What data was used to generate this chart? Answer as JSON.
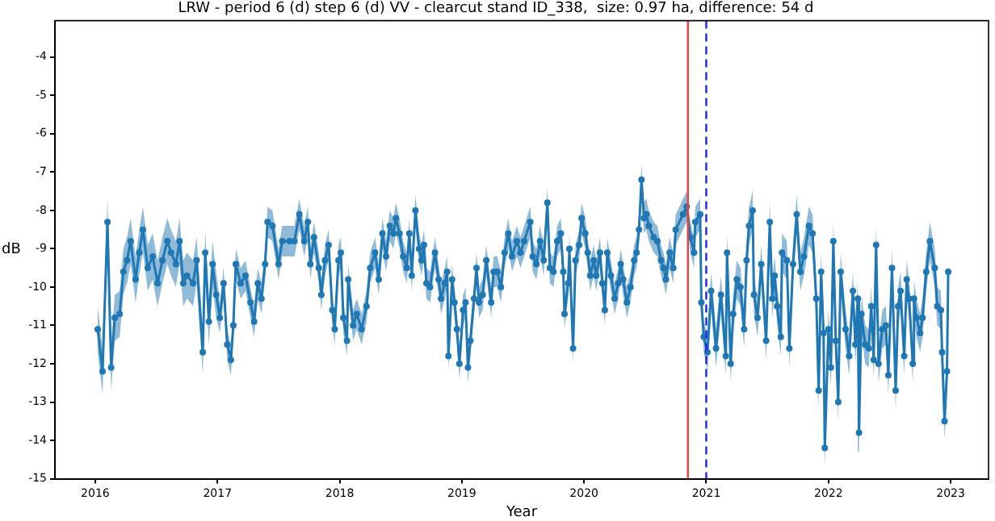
{
  "chart_data": {
    "type": "line",
    "title": "LRW - period 6 (d) step 6 (d) VV - clearcut stand ID_338,  size: 0.97 ha, difference: 54 d",
    "xlabel": "Year",
    "ylabel": "dB",
    "xlim": [
      2015.67,
      2023.31
    ],
    "xticks": [
      2016,
      2017,
      2018,
      2019,
      2020,
      2021,
      2022,
      2023
    ],
    "ylim": [
      -15,
      -3.05
    ],
    "yticks": [
      -15,
      -14,
      -13,
      -12,
      -11,
      -10,
      -9,
      -8,
      -7,
      -6,
      -5,
      -4
    ],
    "marker": "circle",
    "ref_lines": [
      {
        "axis": "x",
        "value": 2020.85,
        "color": "#f03c3c"
      },
      {
        "axis": "x",
        "value": 2021.0,
        "color": "#2222ee",
        "line_style": "dashed"
      }
    ],
    "series": [
      {
        "color": "#1f77b4",
        "x": [
          2016.02,
          2016.06,
          2016.1,
          2016.13,
          2016.16,
          2016.2,
          2016.23,
          2016.26,
          2016.29,
          2016.33,
          2016.36,
          2016.39,
          2016.43,
          2016.47,
          2016.51,
          2016.55,
          2016.59,
          2016.62,
          2016.66,
          2016.69,
          2016.72,
          2016.75,
          2016.8,
          2016.83,
          2016.88,
          2016.9,
          2016.93,
          2016.96,
          2016.99,
          2017.02,
          2017.05,
          2017.08,
          2017.11,
          2017.13,
          2017.15,
          2017.19,
          2017.23,
          2017.27,
          2017.3,
          2017.33,
          2017.36,
          2017.39,
          2017.41,
          2017.45,
          2017.5,
          2017.53,
          2017.59,
          2017.63,
          2017.67,
          2017.71,
          2017.74,
          2017.76,
          2017.79,
          2017.83,
          2017.85,
          2017.88,
          2017.91,
          2017.94,
          2017.96,
          2017.99,
          2018.01,
          2018.03,
          2018.06,
          2018.07,
          2018.11,
          2018.14,
          2018.18,
          2018.22,
          2018.25,
          2018.29,
          2018.32,
          2018.35,
          2018.38,
          2018.41,
          2018.44,
          2018.46,
          2018.49,
          2018.52,
          2018.55,
          2018.57,
          2018.59,
          2018.62,
          2018.65,
          2018.67,
          2018.69,
          2018.71,
          2018.74,
          2018.78,
          2018.81,
          2018.83,
          2018.86,
          2018.88,
          2018.89,
          2018.92,
          2018.94,
          2018.96,
          2018.98,
          2019.01,
          2019.03,
          2019.05,
          2019.07,
          2019.1,
          2019.12,
          2019.14,
          2019.17,
          2019.2,
          2019.24,
          2019.26,
          2019.29,
          2019.32,
          2019.35,
          2019.38,
          2019.41,
          2019.45,
          2019.48,
          2019.51,
          2019.56,
          2019.58,
          2019.61,
          2019.64,
          2019.67,
          2019.7,
          2019.72,
          2019.75,
          2019.78,
          2019.81,
          2019.83,
          2019.84,
          2019.87,
          2019.88,
          2019.91,
          2019.93,
          2019.96,
          2019.98,
          2020.01,
          2020.03,
          2020.05,
          2020.08,
          2020.1,
          2020.13,
          2020.15,
          2020.17,
          2020.19,
          2020.22,
          2020.25,
          2020.28,
          2020.3,
          2020.32,
          2020.35,
          2020.38,
          2020.41,
          2020.43,
          2020.45,
          2020.47,
          2020.49,
          2020.51,
          2020.53,
          2020.57,
          2020.6,
          2020.63,
          2020.65,
          2020.67,
          2020.7,
          2020.73,
          2020.75,
          2020.81,
          2020.84,
          2020.87,
          2020.9,
          2020.91,
          2020.95,
          2020.96,
          2020.98,
          2021.01,
          2021.04,
          2021.08,
          2021.12,
          2021.16,
          2021.17,
          2021.2,
          2021.22,
          2021.25,
          2021.28,
          2021.31,
          2021.33,
          2021.35,
          2021.38,
          2021.39,
          2021.42,
          2021.45,
          2021.49,
          2021.52,
          2021.54,
          2021.56,
          2021.58,
          2021.61,
          2021.62,
          2021.66,
          2021.68,
          2021.71,
          2021.74,
          2021.77,
          2021.8,
          2021.84,
          2021.87,
          2021.9,
          2021.92,
          2021.94,
          2021.96,
          2021.97,
          2022.0,
          2022.02,
          2022.04,
          2022.06,
          2022.08,
          2022.1,
          2022.14,
          2022.17,
          2022.2,
          2022.22,
          2022.24,
          2022.25,
          2022.27,
          2022.3,
          2022.33,
          2022.35,
          2022.37,
          2022.39,
          2022.41,
          2022.44,
          2022.47,
          2022.49,
          2022.52,
          2022.55,
          2022.57,
          2022.59,
          2022.62,
          2022.64,
          2022.66,
          2022.69,
          2022.7,
          2022.72,
          2022.75,
          2022.77,
          2022.8,
          2022.83,
          2022.87,
          2022.89,
          2022.92,
          2022.93,
          2022.95,
          2022.97,
          2022.98
        ],
        "values": [
          -11.1,
          -12.2,
          -8.3,
          -12.1,
          -10.8,
          -10.7,
          -9.6,
          -9.3,
          -8.8,
          -9.8,
          -9.1,
          -8.5,
          -9.5,
          -9.2,
          -9.9,
          -9.3,
          -8.8,
          -9.1,
          -9.4,
          -8.8,
          -9.9,
          -9.7,
          -9.9,
          -9.3,
          -11.7,
          -9.1,
          -10.9,
          -9.4,
          -10.2,
          -10.8,
          -9.9,
          -11.5,
          -11.9,
          -11.0,
          -9.4,
          -9.9,
          -9.7,
          -10.4,
          -10.9,
          -9.9,
          -10.3,
          -9.4,
          -8.3,
          -8.4,
          -9.4,
          -8.8,
          -8.8,
          -8.8,
          -8.1,
          -8.8,
          -8.3,
          -9.4,
          -8.7,
          -9.5,
          -10.2,
          -9.3,
          -8.9,
          -10.6,
          -11.1,
          -9.3,
          -9.1,
          -10.8,
          -11.4,
          -9.8,
          -11.0,
          -10.7,
          -11.1,
          -10.5,
          -9.5,
          -9.1,
          -9.8,
          -8.6,
          -9.2,
          -8.4,
          -8.6,
          -8.2,
          -8.6,
          -9.2,
          -9.5,
          -8.6,
          -9.7,
          -8.0,
          -9.0,
          -9.3,
          -8.9,
          -9.9,
          -10.0,
          -9.1,
          -9.8,
          -10.3,
          -9.9,
          -9.6,
          -11.8,
          -9.8,
          -10.4,
          -11.1,
          -12.0,
          -10.6,
          -10.4,
          -12.1,
          -11.4,
          -10.3,
          -9.5,
          -10.4,
          -10.2,
          -9.3,
          -10.4,
          -9.6,
          -9.6,
          -10.0,
          -9.1,
          -8.6,
          -9.2,
          -8.8,
          -9.1,
          -8.8,
          -8.3,
          -9.2,
          -9.4,
          -8.8,
          -9.3,
          -7.8,
          -9.5,
          -9.6,
          -8.8,
          -8.6,
          -9.6,
          -10.7,
          -9.9,
          -9.0,
          -11.6,
          -9.3,
          -8.9,
          -8.2,
          -8.6,
          -9.1,
          -9.7,
          -9.3,
          -9.7,
          -9.1,
          -9.9,
          -10.6,
          -9.1,
          -9.7,
          -10.3,
          -9.9,
          -9.4,
          -9.8,
          -10.4,
          -10.0,
          -9.3,
          -9.1,
          -8.5,
          -7.2,
          -8.2,
          -8.1,
          -8.4,
          -8.7,
          -8.8,
          -9.3,
          -9.5,
          -9.8,
          -9.1,
          -9.5,
          -8.5,
          -8.1,
          -7.9,
          -8.7,
          -9.1,
          -8.3,
          -8.1,
          -10.4,
          -11.3,
          -11.7,
          -10.1,
          -11.6,
          -10.2,
          -11.8,
          -9.1,
          -12.0,
          -10.7,
          -9.8,
          -10.0,
          -11.1,
          -9.3,
          -8.4,
          -8.0,
          -10.2,
          -10.8,
          -9.4,
          -11.4,
          -8.3,
          -10.3,
          -9.7,
          -10.5,
          -11.3,
          -9.1,
          -9.3,
          -11.6,
          -9.4,
          -8.1,
          -9.6,
          -9.2,
          -8.4,
          -8.6,
          -10.3,
          -12.7,
          -9.6,
          -11.2,
          -14.2,
          -11.1,
          -12.1,
          -8.8,
          -11.4,
          -13.0,
          -9.6,
          -11.1,
          -11.8,
          -10.1,
          -11.5,
          -10.3,
          -13.8,
          -10.7,
          -11.5,
          -11.6,
          -10.5,
          -11.9,
          -8.9,
          -12.0,
          -11.1,
          -11.0,
          -12.3,
          -9.5,
          -12.7,
          -10.5,
          -10.1,
          -11.8,
          -9.8,
          -10.3,
          -12.0,
          -10.3,
          -10.8,
          -11.2,
          -10.8,
          -9.6,
          -8.8,
          -9.5,
          -10.5,
          -10.6,
          -11.7,
          -13.5,
          -12.2,
          -9.6
        ],
        "lower": [
          -11.7,
          -12.8,
          -8.9,
          -12.7,
          -11.4,
          -11.3,
          -10.2,
          -9.9,
          -9.4,
          -10.4,
          -9.7,
          -9.1,
          -10.1,
          -9.8,
          -10.5,
          -9.9,
          -9.4,
          -9.7,
          -10.0,
          -9.4,
          -10.5,
          -10.3,
          -10.5,
          -9.9,
          -12.3,
          -9.7,
          -11.5,
          -10.0,
          -10.8,
          -11.2,
          -10.3,
          -11.9,
          -12.3,
          -11.4,
          -9.8,
          -10.3,
          -10.1,
          -10.8,
          -11.3,
          -10.3,
          -10.7,
          -9.8,
          -8.7,
          -8.8,
          -9.8,
          -9.2,
          -9.2,
          -9.2,
          -8.5,
          -9.2,
          -8.7,
          -9.8,
          -9.1,
          -9.9,
          -10.6,
          -9.7,
          -9.3,
          -11.0,
          -11.5,
          -9.7,
          -9.5,
          -11.2,
          -11.8,
          -10.2,
          -11.4,
          -11.1,
          -11.5,
          -10.9,
          -9.9,
          -9.5,
          -10.2,
          -9.0,
          -9.6,
          -8.8,
          -9.0,
          -8.6,
          -9.0,
          -9.6,
          -9.9,
          -9.0,
          -10.1,
          -8.4,
          -9.4,
          -9.7,
          -9.3,
          -10.3,
          -10.4,
          -9.5,
          -10.2,
          -10.7,
          -10.3,
          -10.0,
          -12.2,
          -10.2,
          -10.8,
          -11.5,
          -12.4,
          -11.0,
          -10.8,
          -12.5,
          -11.8,
          -10.7,
          -9.9,
          -10.8,
          -10.6,
          -9.7,
          -10.8,
          -10.0,
          -10.0,
          -10.4,
          -9.5,
          -9.0,
          -9.6,
          -9.2,
          -9.5,
          -9.2,
          -8.7,
          -9.6,
          -9.8,
          -9.2,
          -9.7,
          -8.2,
          -9.9,
          -10.0,
          -9.2,
          -9.0,
          -10.0,
          -11.1,
          -10.3,
          -9.4,
          -12.0,
          -9.7,
          -9.3,
          -8.6,
          -9.0,
          -9.5,
          -10.1,
          -9.7,
          -10.1,
          -9.5,
          -10.3,
          -11.0,
          -9.5,
          -10.1,
          -10.7,
          -10.3,
          -9.8,
          -10.2,
          -10.8,
          -10.4,
          -9.7,
          -9.5,
          -8.9,
          -7.6,
          -8.6,
          -8.5,
          -8.8,
          -9.1,
          -9.2,
          -9.7,
          -9.9,
          -10.2,
          -9.5,
          -9.9,
          -8.9,
          -8.5,
          -8.3,
          -9.1,
          -9.5,
          -8.7,
          -8.5,
          -10.8,
          -11.7,
          -12.2,
          -10.6,
          -12.1,
          -10.7,
          -12.3,
          -9.6,
          -12.5,
          -11.2,
          -10.3,
          -10.5,
          -11.6,
          -9.8,
          -8.9,
          -8.5,
          -10.7,
          -11.3,
          -9.9,
          -11.9,
          -8.8,
          -10.8,
          -10.2,
          -11.0,
          -11.8,
          -9.6,
          -9.8,
          -12.1,
          -9.9,
          -8.6,
          -10.1,
          -9.7,
          -8.9,
          -9.1,
          -10.8,
          -13.2,
          -10.1,
          -11.7,
          -14.7,
          -11.6,
          -12.6,
          -9.3,
          -11.9,
          -13.5,
          -10.1,
          -11.6,
          -12.3,
          -10.6,
          -12.0,
          -10.8,
          -14.3,
          -11.2,
          -12.0,
          -12.1,
          -11.0,
          -12.4,
          -9.4,
          -12.5,
          -11.6,
          -11.5,
          -12.8,
          -10.0,
          -13.2,
          -11.0,
          -10.6,
          -12.3,
          -10.3,
          -10.8,
          -12.5,
          -10.8,
          -11.3,
          -11.7,
          -11.3,
          -10.1,
          -9.3,
          -10.0,
          -11.0,
          -11.1,
          -12.2,
          -14.0,
          -12.7,
          -10.1
        ],
        "upper": [
          -10.5,
          -11.6,
          -7.7,
          -11.5,
          -10.2,
          -10.1,
          -9.0,
          -8.7,
          -8.2,
          -9.2,
          -8.5,
          -7.9,
          -8.9,
          -8.6,
          -9.3,
          -8.7,
          -8.2,
          -8.5,
          -8.8,
          -8.2,
          -9.3,
          -9.1,
          -9.3,
          -8.7,
          -11.1,
          -8.5,
          -10.3,
          -8.8,
          -9.6,
          -10.4,
          -9.5,
          -11.1,
          -11.5,
          -10.6,
          -9.0,
          -9.5,
          -9.3,
          -10.0,
          -10.5,
          -9.5,
          -9.9,
          -9.0,
          -7.9,
          -8.0,
          -9.0,
          -8.4,
          -8.4,
          -8.4,
          -7.7,
          -8.4,
          -7.9,
          -9.0,
          -8.3,
          -9.1,
          -9.8,
          -8.9,
          -8.5,
          -10.2,
          -10.7,
          -8.9,
          -8.7,
          -10.4,
          -11.0,
          -9.4,
          -10.6,
          -10.3,
          -10.7,
          -10.1,
          -9.1,
          -8.7,
          -9.4,
          -8.2,
          -8.8,
          -8.0,
          -8.2,
          -7.8,
          -8.2,
          -8.8,
          -9.1,
          -8.2,
          -9.3,
          -7.6,
          -8.6,
          -8.9,
          -8.5,
          -9.5,
          -9.6,
          -8.7,
          -9.4,
          -9.9,
          -9.5,
          -9.2,
          -11.4,
          -9.4,
          -10.0,
          -10.7,
          -11.6,
          -10.2,
          -10.0,
          -11.7,
          -11.0,
          -9.9,
          -9.1,
          -10.0,
          -9.8,
          -8.9,
          -10.0,
          -9.2,
          -9.2,
          -9.6,
          -8.7,
          -8.2,
          -8.8,
          -8.4,
          -8.7,
          -8.4,
          -7.9,
          -8.8,
          -9.0,
          -8.4,
          -8.9,
          -7.4,
          -9.1,
          -9.2,
          -8.4,
          -8.2,
          -9.2,
          -10.3,
          -9.5,
          -8.6,
          -11.2,
          -8.9,
          -8.5,
          -7.8,
          -8.2,
          -8.7,
          -9.3,
          -8.9,
          -9.3,
          -8.7,
          -9.5,
          -10.2,
          -8.7,
          -9.3,
          -9.9,
          -9.5,
          -9.0,
          -9.4,
          -10.0,
          -9.6,
          -8.9,
          -8.7,
          -8.1,
          -6.8,
          -7.8,
          -7.7,
          -8.0,
          -8.3,
          -8.4,
          -8.9,
          -9.1,
          -9.4,
          -8.7,
          -9.1,
          -8.1,
          -7.7,
          -7.5,
          -8.3,
          -8.7,
          -7.9,
          -7.7,
          -10.0,
          -10.9,
          -11.2,
          -9.6,
          -11.1,
          -9.7,
          -11.3,
          -8.6,
          -11.5,
          -10.2,
          -9.3,
          -9.5,
          -10.6,
          -8.8,
          -7.9,
          -7.5,
          -9.7,
          -10.3,
          -8.9,
          -10.9,
          -7.8,
          -9.8,
          -9.2,
          -10.0,
          -10.8,
          -8.6,
          -8.8,
          -11.1,
          -8.9,
          -7.6,
          -9.1,
          -8.7,
          -7.9,
          -8.1,
          -9.8,
          -12.2,
          -9.1,
          -10.7,
          -13.7,
          -10.6,
          -11.6,
          -8.3,
          -10.9,
          -12.5,
          -9.1,
          -10.6,
          -11.3,
          -9.6,
          -11.0,
          -9.8,
          -13.3,
          -10.2,
          -11.0,
          -11.1,
          -10.0,
          -11.4,
          -8.4,
          -11.5,
          -10.6,
          -10.5,
          -11.8,
          -9.0,
          -12.2,
          -10.0,
          -9.6,
          -11.3,
          -9.3,
          -9.8,
          -11.5,
          -9.8,
          -10.3,
          -10.7,
          -10.3,
          -9.1,
          -8.3,
          -9.0,
          -10.0,
          -10.1,
          -11.2,
          -13.0,
          -11.7,
          -9.1
        ]
      }
    ]
  }
}
